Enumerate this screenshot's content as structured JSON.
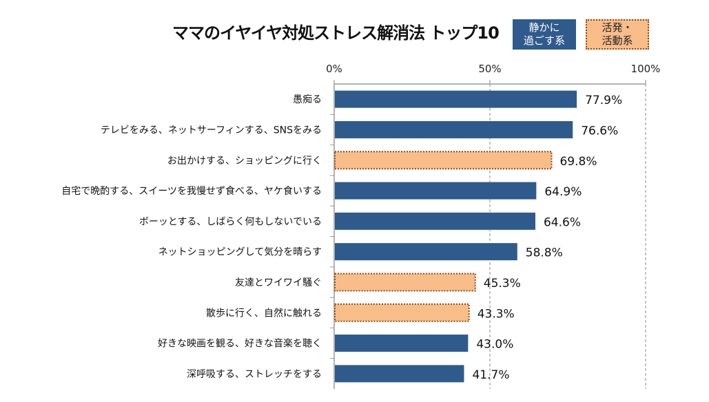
{
  "chart_data": {
    "type": "bar",
    "orientation": "horizontal",
    "title": "ママのイヤイヤ対処ストレス解消法 トップ10",
    "categories": [
      "愚痴る",
      "テレビをみる、ネットサーフィンする、SNSをみる",
      "お出かけする、ショッピングに行く",
      "自宅で晩酌する、スイーツを我慢せず食べる、ヤケ食いする",
      "ボーッとする、しばらく何もしないでいる",
      "ネットショッピングして気分を晴らす",
      "友達とワイワイ騒ぐ",
      "散歩に行く、自然に触れる",
      "好きな映画を観る、好きな音楽を聴く",
      "深呼吸する、ストレッチをする"
    ],
    "values": [
      77.9,
      76.6,
      69.8,
      64.9,
      64.6,
      58.8,
      45.3,
      43.3,
      43.0,
      41.7
    ],
    "data_labels": [
      "77.9%",
      "76.6%",
      "69.8%",
      "64.9%",
      "64.6%",
      "58.8%",
      "45.3%",
      "43.3%",
      "43.0%",
      "41.7%"
    ],
    "groups": [
      "quiet",
      "quiet",
      "active",
      "quiet",
      "quiet",
      "quiet",
      "active",
      "active",
      "quiet",
      "quiet"
    ],
    "legend": [
      {
        "key": "quiet",
        "label_line1": "静かに",
        "label_line2": "過ごす系",
        "color": "#2f5a8c"
      },
      {
        "key": "active",
        "label_line1": "活発・",
        "label_line2": "活動系",
        "color": "#f9bd8a",
        "border": "#8a4a1a"
      }
    ],
    "legend_position": "top-right",
    "xlim": [
      0,
      100
    ],
    "xticks": [
      "0%",
      "50%",
      "100%"
    ],
    "xtick_values": [
      0,
      50,
      100
    ],
    "axis_position": "top",
    "grid": "dashed vertical at 50% and 100%"
  }
}
